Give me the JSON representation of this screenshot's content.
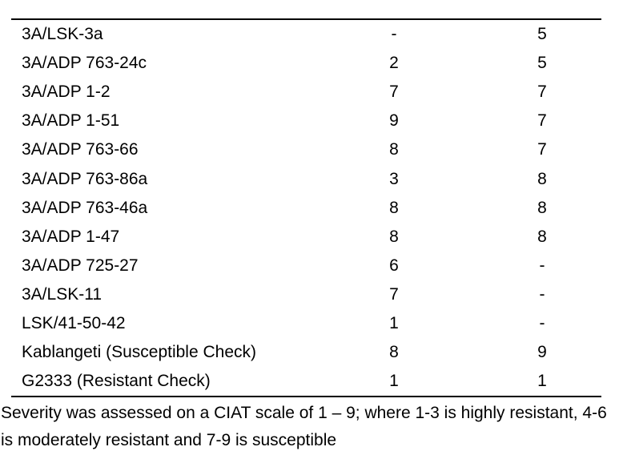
{
  "table": {
    "rows": [
      {
        "name": "3A/LSK-3a",
        "col1": "-",
        "col2": "5"
      },
      {
        "name": "3A/ADP 763-24c",
        "col1": "2",
        "col2": "5"
      },
      {
        "name": "3A/ADP 1-2",
        "col1": "7",
        "col2": "7"
      },
      {
        "name": "3A/ADP 1-51",
        "col1": "9",
        "col2": "7"
      },
      {
        "name": "3A/ADP 763-66",
        "col1": "8",
        "col2": "7"
      },
      {
        "name": "3A/ADP 763-86a",
        "col1": "3",
        "col2": "8"
      },
      {
        "name": "3A/ADP 763-46a",
        "col1": "8",
        "col2": "8"
      },
      {
        "name": "3A/ADP 1-47",
        "col1": "8",
        "col2": "8"
      },
      {
        "name": "3A/ADP 725-27",
        "col1": "6",
        "col2": "-"
      },
      {
        "name": "3A/LSK-11",
        "col1": "7",
        "col2": "-"
      },
      {
        "name": "LSK/41-50-42",
        "col1": "1",
        "col2": "-"
      },
      {
        "name": "Kablangeti (Susceptible Check)",
        "col1": "8",
        "col2": "9"
      },
      {
        "name": "G2333 (Resistant Check)",
        "col1": "1",
        "col2": "1"
      }
    ]
  },
  "footnote": {
    "lines": [
      "Severity was assessed on a CIAT scale of 1 – 9; where 1-3 is highly resistant, 4-6",
      "is moderately resistant and 7-9 is susceptible"
    ]
  },
  "colors": {
    "background": "#ffffff",
    "text": "#000000",
    "rule": "#000000"
  }
}
